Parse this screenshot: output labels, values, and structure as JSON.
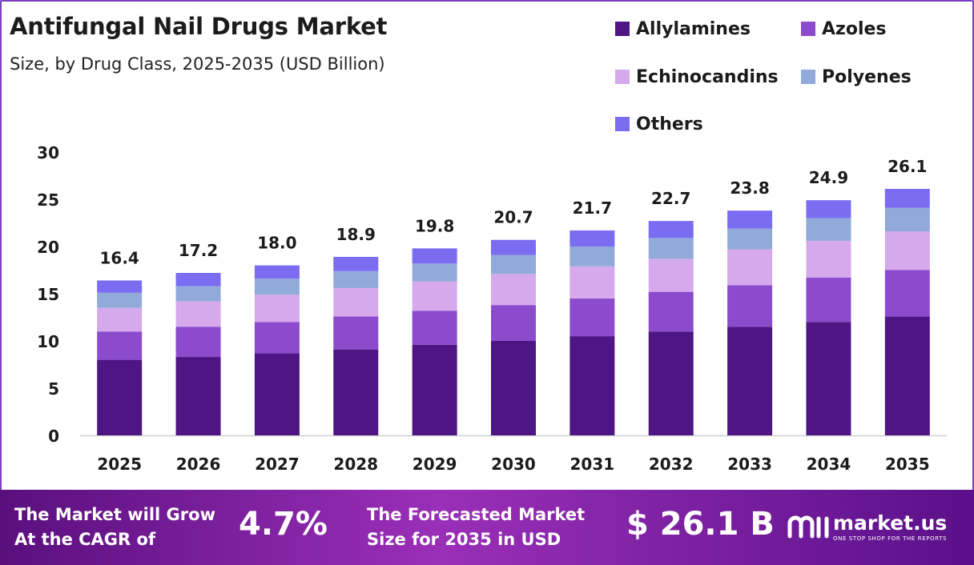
{
  "header": {
    "title": "Antifungal Nail Drugs Market",
    "subtitle": "Size, by Drug Class, 2025-2035 (USD Billion)"
  },
  "legend": [
    {
      "label": "Allylamines",
      "color": "#4e1585"
    },
    {
      "label": "Azoles",
      "color": "#8c4bcc"
    },
    {
      "label": "Echinocandins",
      "color": "#d5a9ec"
    },
    {
      "label": "Polyenes",
      "color": "#91aad9"
    },
    {
      "label": "Others",
      "color": "#7b6cf2"
    }
  ],
  "chart_data": {
    "type": "bar",
    "stacked": true,
    "title": "Antifungal Nail Drugs Market",
    "subtitle": "Size, by Drug Class, 2025-2035 (USD Billion)",
    "categories": [
      "2025",
      "2026",
      "2027",
      "2028",
      "2029",
      "2030",
      "2031",
      "2032",
      "2033",
      "2034",
      "2035"
    ],
    "series": [
      {
        "name": "Allylamines",
        "color": "#4e1585",
        "values": [
          8.0,
          8.3,
          8.7,
          9.1,
          9.6,
          10.0,
          10.5,
          11.0,
          11.5,
          12.0,
          12.6
        ]
      },
      {
        "name": "Azoles",
        "color": "#8c4bcc",
        "values": [
          3.0,
          3.2,
          3.3,
          3.5,
          3.6,
          3.8,
          4.0,
          4.2,
          4.4,
          4.7,
          4.9
        ]
      },
      {
        "name": "Echinocandins",
        "color": "#d5a9ec",
        "values": [
          2.5,
          2.7,
          2.9,
          3.0,
          3.1,
          3.3,
          3.4,
          3.5,
          3.8,
          3.9,
          4.1
        ]
      },
      {
        "name": "Polyenes",
        "color": "#91aad9",
        "values": [
          1.6,
          1.6,
          1.7,
          1.8,
          1.9,
          2.0,
          2.1,
          2.2,
          2.2,
          2.4,
          2.5
        ]
      },
      {
        "name": "Others",
        "color": "#7b6cf2",
        "values": [
          1.3,
          1.4,
          1.4,
          1.5,
          1.6,
          1.6,
          1.7,
          1.8,
          1.9,
          1.9,
          2.0
        ]
      }
    ],
    "totals": [
      "16.4",
      "17.2",
      "18.0",
      "18.9",
      "19.8",
      "20.7",
      "21.7",
      "22.7",
      "23.8",
      "24.9",
      "26.1"
    ],
    "ylim": [
      0,
      30
    ],
    "yticks": [
      "0",
      "5",
      "10",
      "15",
      "20",
      "25",
      "30"
    ],
    "grid": false,
    "legend_position": "top-right"
  },
  "footer": {
    "cagr_text_line1": "The Market will Grow",
    "cagr_text_line2": "At the CAGR of",
    "cagr_value": "4.7%",
    "forecast_text_line1": "The Forecasted Market",
    "forecast_text_line2": "Size for 2035 in USD",
    "forecast_value": "$ 26.1 B",
    "logo_name": "market.us",
    "logo_tagline": "ONE STOP SHOP FOR THE REPORTS"
  }
}
